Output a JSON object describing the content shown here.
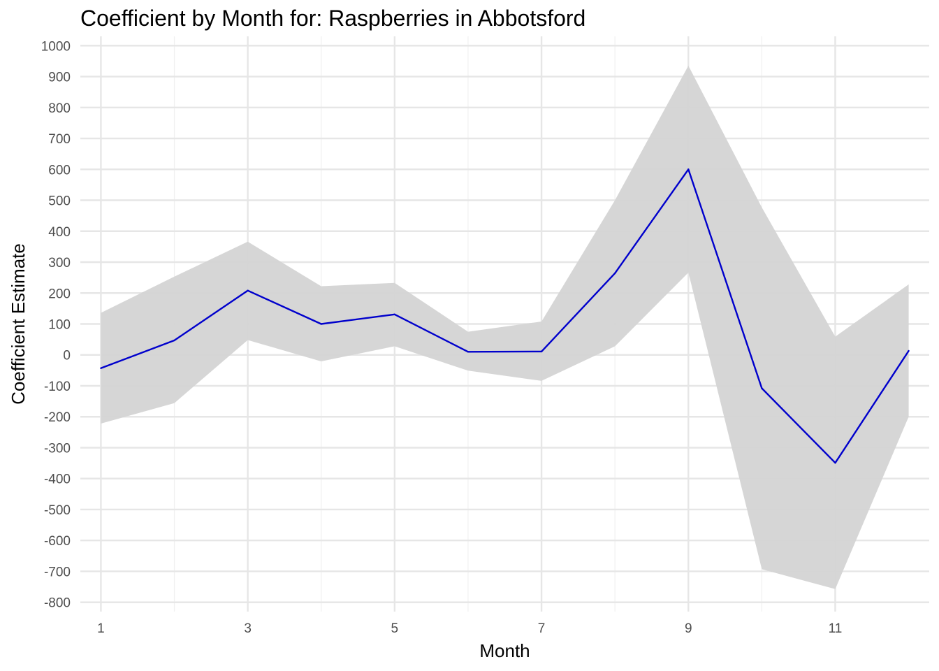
{
  "chart_data": {
    "type": "line",
    "title": "Coefficient by Month for: Raspberries in Abbotsford",
    "xlabel": "Month",
    "ylabel": "Coefficient Estimate",
    "x": [
      1,
      2,
      3,
      4,
      5,
      6,
      7,
      8,
      9,
      10,
      11,
      12
    ],
    "xticks": [
      1,
      3,
      5,
      7,
      9,
      11
    ],
    "xlim": [
      0.72,
      12.28
    ],
    "yticks": [
      -800,
      -700,
      -600,
      -500,
      -400,
      -300,
      -200,
      -100,
      0,
      100,
      200,
      300,
      400,
      500,
      600,
      700,
      800,
      900,
      1000
    ],
    "ylim": [
      -830,
      1030
    ],
    "grid": true,
    "series": [
      {
        "values": [
          -43,
          47,
          208,
          100,
          131,
          10,
          11,
          264,
          600,
          -108,
          -349,
          13
        ],
        "lower": [
          -222,
          -156,
          48,
          -21,
          28,
          -51,
          -84,
          28,
          266,
          -693,
          -757,
          -200
        ],
        "upper": [
          136,
          253,
          366,
          222,
          233,
          75,
          108,
          500,
          935,
          477,
          59,
          228
        ],
        "color": "#0000cc",
        "band_color": "#d4d4d4"
      }
    ]
  }
}
